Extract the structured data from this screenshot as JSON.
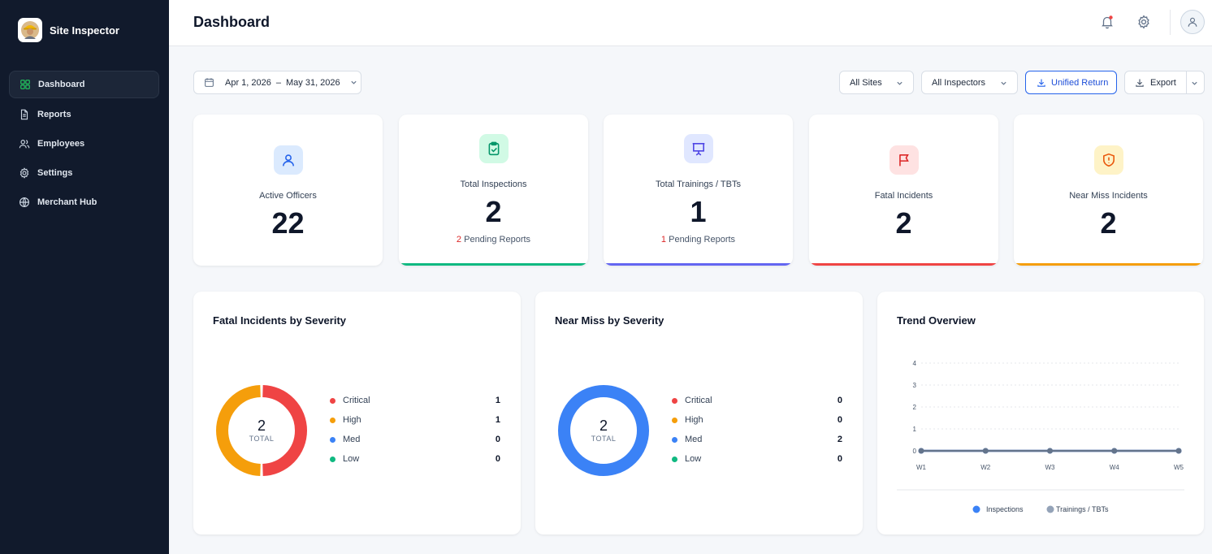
{
  "app": {
    "name": "Site Inspector"
  },
  "sidebar": {
    "items": [
      {
        "label": "Dashboard"
      },
      {
        "label": "Reports"
      },
      {
        "label": "Employees"
      },
      {
        "label": "Settings"
      },
      {
        "label": "Merchant Hub"
      }
    ]
  },
  "header": {
    "title": "Dashboard"
  },
  "toolbar": {
    "date_start": "Apr 1, 2026",
    "date_sep": "–",
    "date_end": "May 31, 2026",
    "sites": "All Sites",
    "inspectors": "All Inspectors",
    "unified_return": "Unified Return",
    "export": "Export"
  },
  "kpis": [
    {
      "label": "Active Officers",
      "value": "22",
      "color": "#2563eb"
    },
    {
      "label": "Total Inspections",
      "value": "2",
      "pending_count": "2",
      "pending_text": "Pending Reports",
      "color": "#10b981"
    },
    {
      "label": "Total Trainings / TBTs",
      "value": "1",
      "pending_count": "1",
      "pending_text": "Pending Reports",
      "color": "#6366f1"
    },
    {
      "label": "Fatal Incidents",
      "value": "2",
      "color": "#ef4444"
    },
    {
      "label": "Near Miss Incidents",
      "value": "2",
      "color": "#f59e0b"
    }
  ],
  "fatal": {
    "title": "Fatal Incidents by Severity",
    "total": "2",
    "total_label": "TOTAL",
    "rows": [
      {
        "label": "Critical",
        "value": "1",
        "color": "#ef4444"
      },
      {
        "label": "High",
        "value": "1",
        "color": "#f59e0b"
      },
      {
        "label": "Med",
        "value": "0",
        "color": "#3b82f6"
      },
      {
        "label": "Low",
        "value": "0",
        "color": "#10b981"
      }
    ]
  },
  "nearmiss": {
    "title": "Near Miss by Severity",
    "total": "2",
    "total_label": "TOTAL",
    "rows": [
      {
        "label": "Critical",
        "value": "0",
        "color": "#ef4444"
      },
      {
        "label": "High",
        "value": "0",
        "color": "#f59e0b"
      },
      {
        "label": "Med",
        "value": "2",
        "color": "#3b82f6"
      },
      {
        "label": "Low",
        "value": "0",
        "color": "#10b981"
      }
    ]
  },
  "trend": {
    "title": "Trend Overview"
  },
  "chart_data": [
    {
      "type": "pie",
      "title": "Fatal Incidents by Severity",
      "categories": [
        "Critical",
        "High",
        "Med",
        "Low"
      ],
      "values": [
        1,
        1,
        0,
        0
      ],
      "colors": [
        "#ef4444",
        "#f59e0b",
        "#3b82f6",
        "#10b981"
      ]
    },
    {
      "type": "pie",
      "title": "Near Miss by Severity",
      "categories": [
        "Critical",
        "High",
        "Med",
        "Low"
      ],
      "values": [
        0,
        0,
        2,
        0
      ],
      "colors": [
        "#ef4444",
        "#f59e0b",
        "#3b82f6",
        "#10b981"
      ]
    },
    {
      "type": "line",
      "title": "Trend Overview",
      "x": [
        "W1",
        "W2",
        "W3",
        "W4",
        "W5"
      ],
      "y_ticks": [
        "0",
        "1",
        "2",
        "3",
        "4"
      ],
      "ylim": [
        0,
        4
      ],
      "grid": true,
      "legend_position": "bottom",
      "series": [
        {
          "name": "Inspections",
          "values": [
            0,
            0,
            0,
            0,
            0
          ],
          "color": "#3b82f6"
        },
        {
          "name": "Trainings / TBTs",
          "values": [
            0,
            0,
            0,
            0,
            0
          ],
          "color": "#64748b"
        }
      ]
    }
  ]
}
